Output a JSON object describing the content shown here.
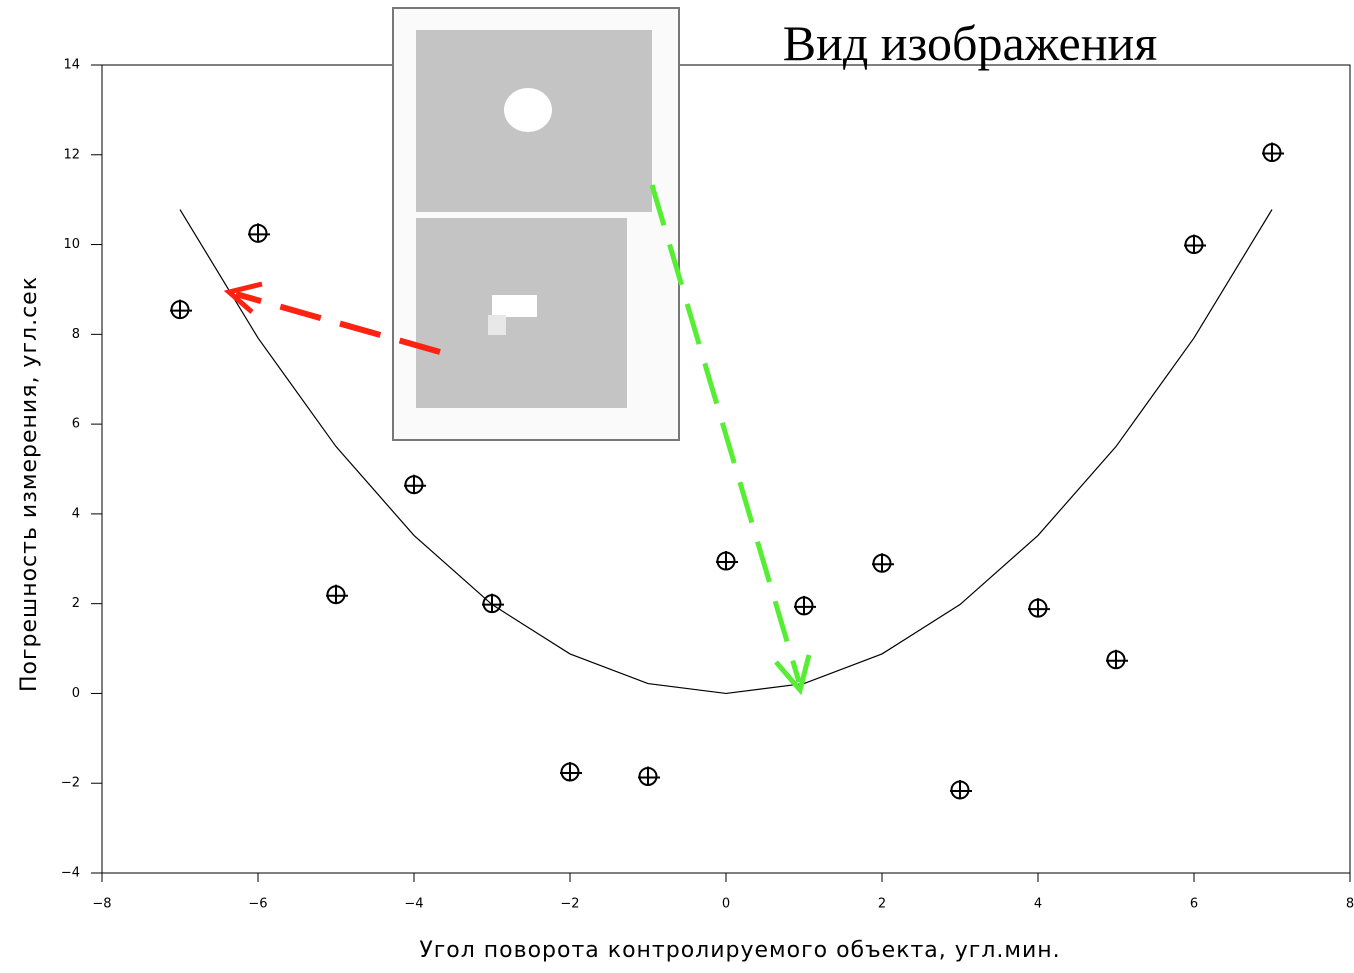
{
  "chart_data": {
    "type": "scatter",
    "title": "Вид изображения",
    "xlabel": "Угол поворота контролируемого объекта, угл.мин.",
    "ylabel": "Погрешность измерения, угл.сек",
    "xlim": [
      -8,
      8
    ],
    "xticks": [
      {
        "value": -8,
        "label": "−8"
      },
      {
        "value": -6,
        "label": "−6"
      },
      {
        "value": -4,
        "label": "−4"
      },
      {
        "value": -2,
        "label": "−2"
      },
      0,
      2,
      4,
      6,
      8
    ],
    "ylim": [
      -4,
      14
    ],
    "yticks": [
      {
        "value": -4,
        "label": "−4"
      },
      {
        "value": -2,
        "label": "−2"
      },
      0,
      2,
      4,
      6,
      8,
      10,
      12,
      14
    ],
    "series": [
      {
        "type": "scatter",
        "color": "#000000",
        "x": [
          -7,
          -6,
          -5,
          -4,
          -3,
          -2,
          -1,
          0,
          1,
          2,
          3,
          4,
          5,
          6,
          7
        ],
        "values": [
          8.55,
          10.25,
          2.2,
          4.65,
          2.0,
          -1.75,
          -1.85,
          2.95,
          1.95,
          2.9,
          -2.15,
          1.9,
          0.75,
          10.0,
          12.05
        ]
      },
      {
        "type": "line",
        "color": "#000000",
        "x": [
          -7,
          -6,
          -5,
          -4,
          -3,
          -2,
          -1,
          0,
          1,
          2,
          3,
          4,
          5,
          6,
          7
        ],
        "values": [
          10.78,
          7.92,
          5.5,
          3.52,
          1.98,
          0.88,
          0.22,
          0,
          0.22,
          0.88,
          1.98,
          3.52,
          5.5,
          7.92,
          10.78
        ]
      }
    ]
  }
}
